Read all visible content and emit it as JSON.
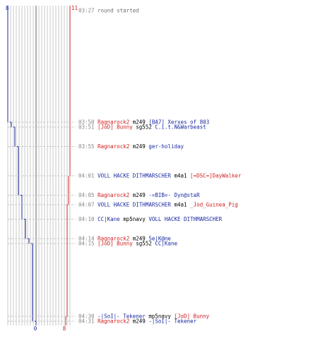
{
  "chart_data": {
    "type": "line",
    "scores": {
      "blue_start": "8",
      "red_start": "11",
      "blue_end": "0",
      "red_end": "8"
    },
    "colors": {
      "blue": "#1a2aa0",
      "red": "#d02020",
      "time": "#888888",
      "event": "#707070",
      "weapon": "#000000",
      "grid": "#c8c8c8",
      "center": "#606060"
    },
    "events": [
      {
        "time": "03:27",
        "parts": [
          {
            "t": "round started",
            "c": "event"
          }
        ]
      },
      {
        "time": "03:50",
        "parts": [
          {
            "t": "Ragnarock2",
            "c": "red"
          },
          {
            "t": "m249",
            "c": "weapon"
          },
          {
            "t": "[BA7] Xerxes of 803",
            "c": "blue"
          }
        ]
      },
      {
        "time": "03:51",
        "parts": [
          {
            "t": "[JoD] Bunny",
            "c": "red"
          },
          {
            "t": "sg552",
            "c": "weapon"
          },
          {
            "t": "C.i.t.N&Warbeast",
            "c": "blue"
          }
        ]
      },
      {
        "time": "03:55",
        "parts": [
          {
            "t": "Ragnarock2",
            "c": "red"
          },
          {
            "t": "m249",
            "c": "weapon"
          },
          {
            "t": "ger-holiday",
            "c": "blue"
          }
        ]
      },
      {
        "time": "04:01",
        "parts": [
          {
            "t": "VOLL HACKE DITHMARSCHER",
            "c": "blue"
          },
          {
            "t": "m4a1",
            "c": "weapon"
          },
          {
            "t": "[=DSC=]DayWalker",
            "c": "red"
          }
        ]
      },
      {
        "time": "04:05",
        "parts": [
          {
            "t": "Ragnarock2",
            "c": "red"
          },
          {
            "t": "m249",
            "c": "weapon"
          },
          {
            "t": "-=BIB=- Dyn@staR",
            "c": "blue"
          }
        ]
      },
      {
        "time": "04:07",
        "parts": [
          {
            "t": "VOLL HACKE DITHMARSCHER",
            "c": "blue"
          },
          {
            "t": "m4a1",
            "c": "weapon"
          },
          {
            "t": "_Jod_Guinea_Pig",
            "c": "red"
          }
        ]
      },
      {
        "time": "04:10",
        "parts": [
          {
            "t": "CC|Kane",
            "c": "blue"
          },
          {
            "t": "mp5navy",
            "c": "weapon"
          },
          {
            "t": "VOLL HACKE DITHMARSCHER",
            "c": "blue"
          }
        ]
      },
      {
        "time": "04:14",
        "parts": [
          {
            "t": "Ragnarock2",
            "c": "red"
          },
          {
            "t": "m249",
            "c": "weapon"
          },
          {
            "t": "5e|K@ne",
            "c": "blue"
          }
        ]
      },
      {
        "time": "04:15",
        "parts": [
          {
            "t": "[JoD] Bunny",
            "c": "red"
          },
          {
            "t": "sg552",
            "c": "weapon"
          },
          {
            "t": "CC|Kane",
            "c": "blue"
          }
        ]
      },
      {
        "time": "04:30",
        "parts": [
          {
            "t": "-|SoI|- Tekener",
            "c": "blue"
          },
          {
            "t": "mp5navy",
            "c": "weapon"
          },
          {
            "t": "[JoD] Bunny",
            "c": "red"
          }
        ]
      },
      {
        "time": "04:31",
        "parts": [
          {
            "t": "Ragnarock2",
            "c": "red"
          },
          {
            "t": "m249",
            "c": "weapon"
          },
          {
            "t": "-|SoI|- Tekener",
            "c": "blue"
          }
        ]
      }
    ]
  }
}
